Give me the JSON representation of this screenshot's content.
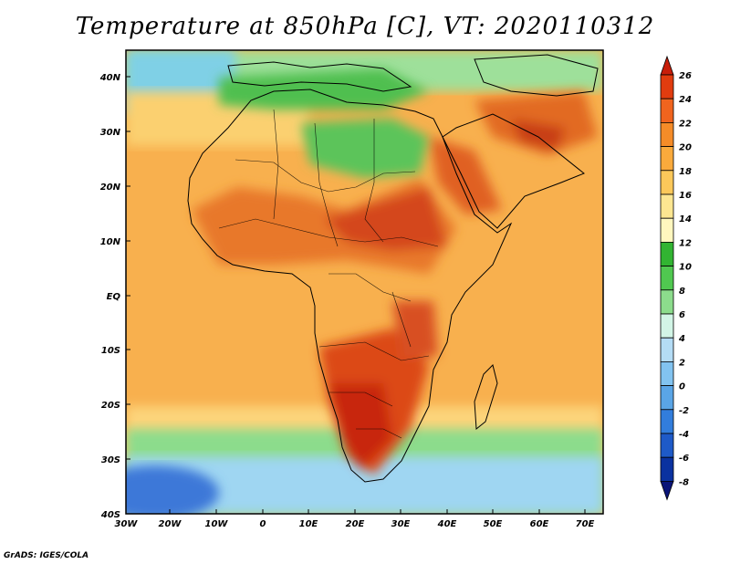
{
  "title": "Temperature at 850hPa [C], VT: 2020110312",
  "credit": "GrADS: IGES/COLA",
  "lat_labels": [
    "40N",
    "30N",
    "20N",
    "10N",
    "EQ",
    "10S",
    "20S",
    "30S",
    "40S"
  ],
  "lon_labels": [
    "30W",
    "20W",
    "10W",
    "0",
    "10E",
    "20E",
    "30E",
    "40E",
    "50E",
    "60E",
    "70E"
  ],
  "colorbar": {
    "levels": [
      "26",
      "24",
      "22",
      "20",
      "18",
      "16",
      "14",
      "12",
      "10",
      "8",
      "6",
      "4",
      "2",
      "0",
      "-2",
      "-4",
      "-6",
      "-8"
    ],
    "colors": [
      "#c81e0a",
      "#e13c0f",
      "#f0641e",
      "#f58c28",
      "#faaa3c",
      "#fcc85a",
      "#fde691",
      "#fff7be",
      "#32b432",
      "#50c850",
      "#8cdc8c",
      "#d2f5e6",
      "#b4dcf5",
      "#82c3f0",
      "#5aa5e6",
      "#327ddc",
      "#1e5ac8",
      "#0a32a0",
      "#0a1478"
    ]
  },
  "colors": {
    "ocean_base": "#f8b04e",
    "land_hot": "#e66a1e"
  }
}
